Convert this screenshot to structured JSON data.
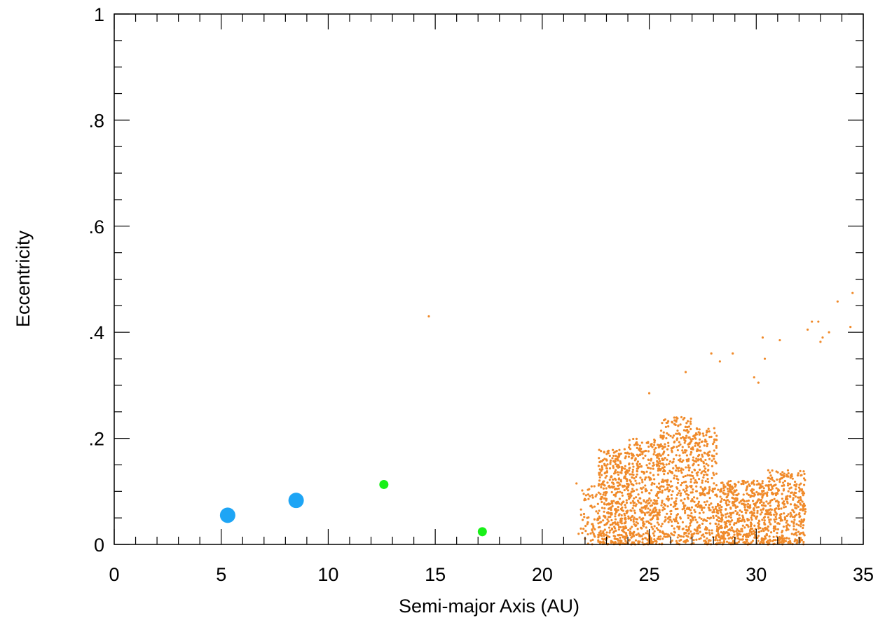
{
  "chart_data": {
    "type": "scatter",
    "title": "",
    "xlabel": "Semi-major Axis (AU)",
    "ylabel": "Eccentricity",
    "xlim": [
      0,
      35
    ],
    "ylim": [
      0,
      1
    ],
    "x_tick_labels": [
      "0",
      "5",
      "10",
      "15",
      "20",
      "25",
      "30",
      "35"
    ],
    "y_tick_labels": [
      "0",
      ".2",
      ".4",
      ".6",
      ".8",
      "1"
    ],
    "grid": false,
    "legend": "none",
    "series": [
      {
        "color": "#1ea5f5",
        "marker_size": "large",
        "points": [
          {
            "x": 5.3,
            "y": 0.055
          },
          {
            "x": 8.5,
            "y": 0.083
          }
        ]
      },
      {
        "color": "#18f018",
        "marker_size": "medium",
        "points": [
          {
            "x": 12.6,
            "y": 0.113
          },
          {
            "x": 17.2,
            "y": 0.024
          }
        ]
      },
      {
        "color": "#f08a2a",
        "marker_size": "small",
        "outliers": [
          {
            "x": 14.7,
            "y": 0.43
          },
          {
            "x": 21.6,
            "y": 0.115
          },
          {
            "x": 21.7,
            "y": 0.02
          },
          {
            "x": 25.0,
            "y": 0.285
          },
          {
            "x": 26.7,
            "y": 0.325
          },
          {
            "x": 27.9,
            "y": 0.36
          },
          {
            "x": 28.3,
            "y": 0.345
          },
          {
            "x": 28.9,
            "y": 0.36
          },
          {
            "x": 29.9,
            "y": 0.315
          },
          {
            "x": 30.1,
            "y": 0.305
          },
          {
            "x": 30.3,
            "y": 0.39
          },
          {
            "x": 30.4,
            "y": 0.35
          },
          {
            "x": 31.1,
            "y": 0.385
          },
          {
            "x": 32.4,
            "y": 0.405
          },
          {
            "x": 32.6,
            "y": 0.42
          },
          {
            "x": 32.9,
            "y": 0.42
          },
          {
            "x": 33.0,
            "y": 0.382
          },
          {
            "x": 33.1,
            "y": 0.39
          },
          {
            "x": 33.4,
            "y": 0.4
          },
          {
            "x": 33.8,
            "y": 0.458
          },
          {
            "x": 34.4,
            "y": 0.41
          },
          {
            "x": 34.5,
            "y": 0.474
          }
        ],
        "clusters": [
          {
            "x_range": [
              21.8,
              22.6
            ],
            "y_max": 0.11,
            "count": 60
          },
          {
            "x_range": [
              22.6,
              24.0
            ],
            "y_max": 0.18,
            "count": 420
          },
          {
            "x_range": [
              24.0,
              25.5
            ],
            "y_max": 0.2,
            "count": 420
          },
          {
            "x_range": [
              25.5,
              27.0
            ],
            "y_max": 0.24,
            "count": 400
          },
          {
            "x_range": [
              27.0,
              28.2
            ],
            "y_max": 0.22,
            "count": 300
          },
          {
            "x_range": [
              28.2,
              30.5
            ],
            "y_max": 0.12,
            "count": 500
          },
          {
            "x_range": [
              30.5,
              32.3
            ],
            "y_max": 0.14,
            "count": 360
          }
        ]
      }
    ]
  }
}
